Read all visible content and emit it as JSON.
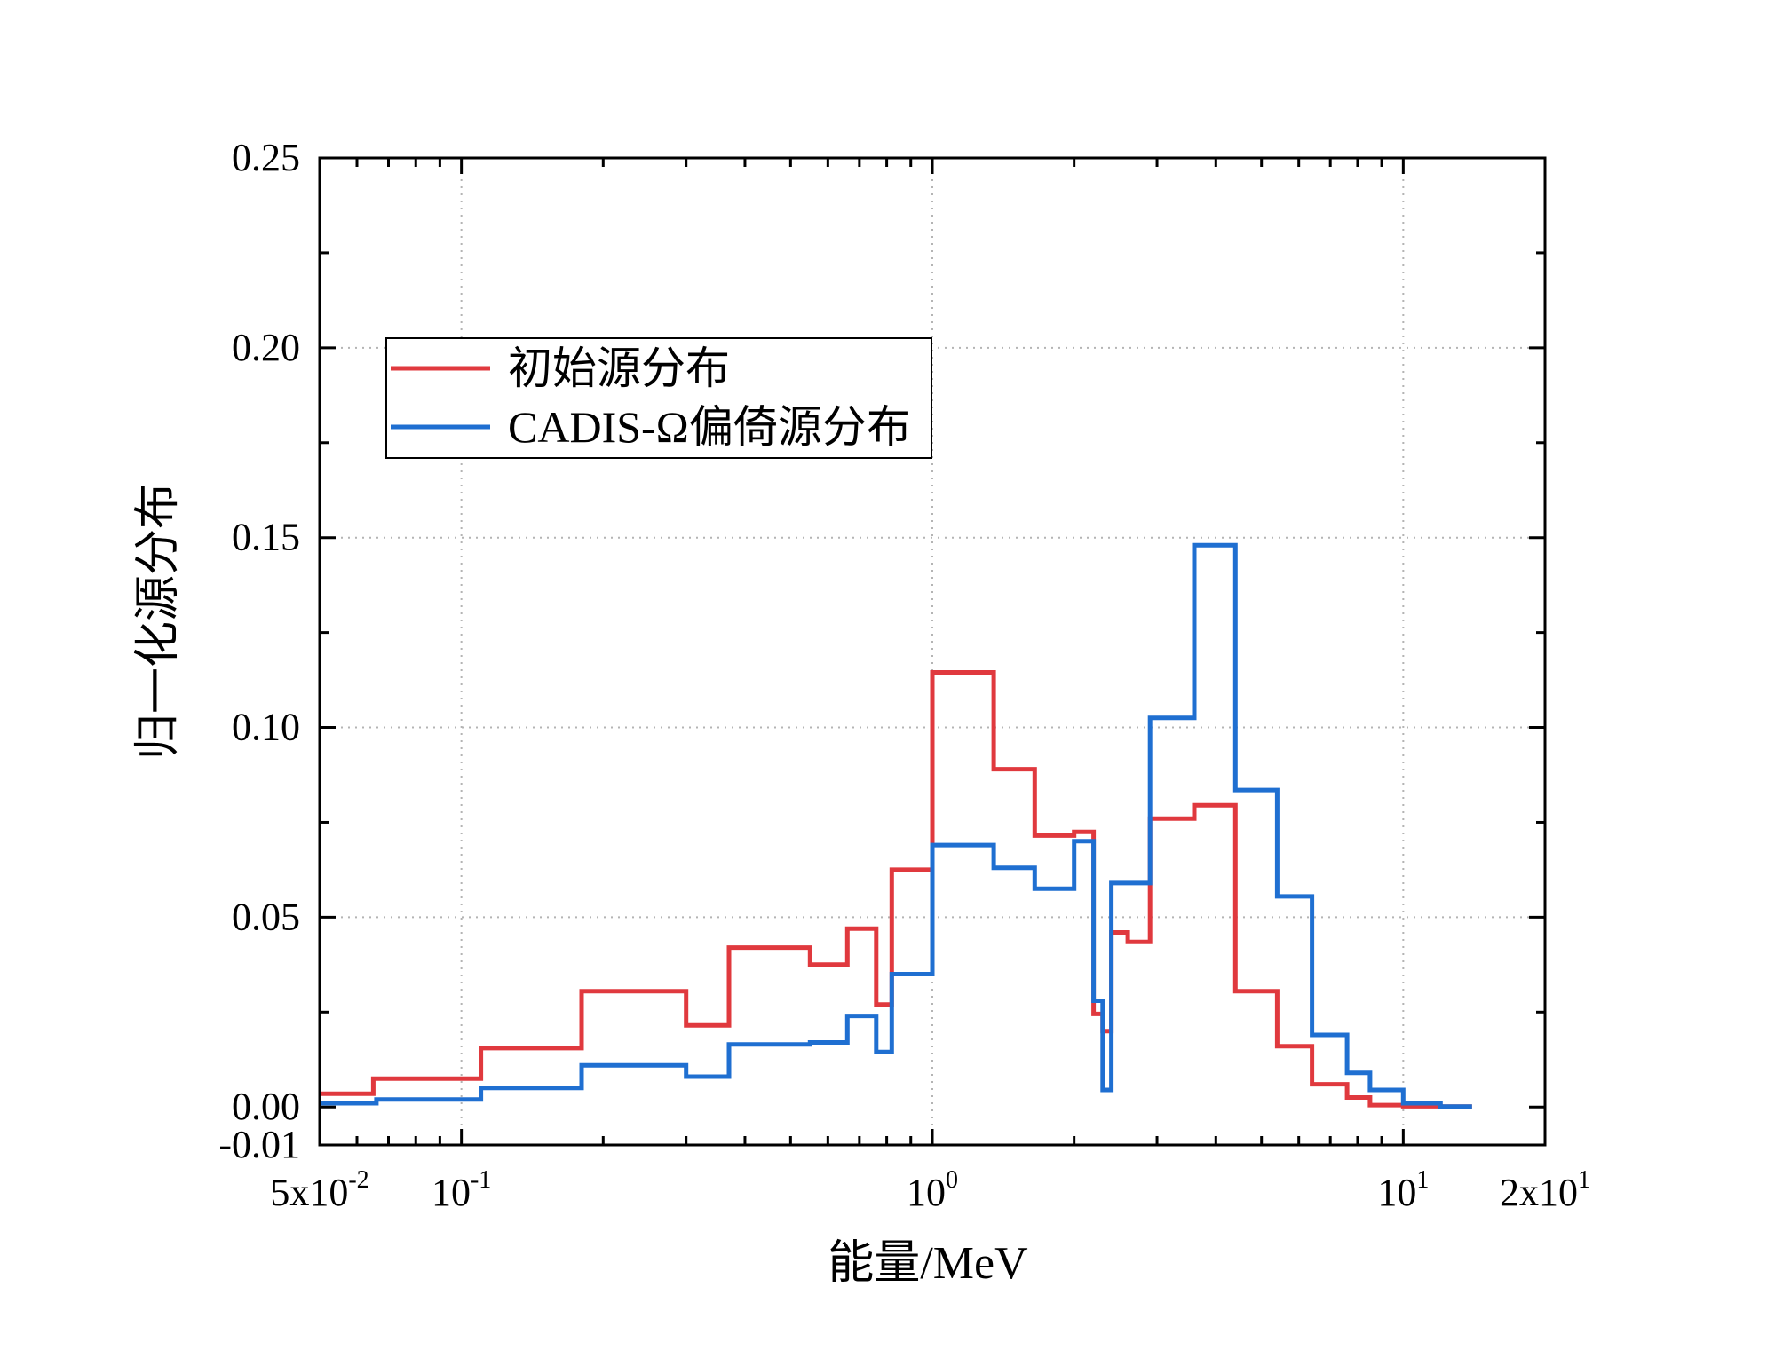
{
  "chart_data": {
    "type": "line",
    "step": true,
    "xlabel": "能量/MeV",
    "ylabel": "归一化源分布",
    "xscale": "log",
    "xlim": [
      0.05,
      20
    ],
    "ylim": [
      -0.01,
      0.25
    ],
    "grid": true,
    "legend_position": "top-left",
    "yticks": [
      {
        "value": -0.01,
        "label": "-0.01"
      },
      {
        "value": 0.0,
        "label": "0.00"
      },
      {
        "value": 0.05,
        "label": "0.05"
      },
      {
        "value": 0.1,
        "label": "0.10"
      },
      {
        "value": 0.15,
        "label": "0.15"
      },
      {
        "value": 0.2,
        "label": "0.20"
      },
      {
        "value": 0.25,
        "label": "0.25"
      }
    ],
    "xticks": [
      {
        "value": 0.05,
        "base": "5x10",
        "exp": "-2"
      },
      {
        "value": 0.1,
        "base": "10",
        "exp": "-1"
      },
      {
        "value": 1,
        "base": "10",
        "exp": "0"
      },
      {
        "value": 10,
        "base": "10",
        "exp": "1"
      },
      {
        "value": 20,
        "base": "2x10",
        "exp": "1"
      }
    ],
    "series": [
      {
        "name": "初始源分布",
        "color": "#e0393e",
        "edges": [
          0.05,
          0.065,
          0.11,
          0.18,
          0.3,
          0.37,
          0.55,
          0.66,
          0.76,
          0.82,
          1.0,
          1.35,
          1.65,
          2.0,
          2.2,
          2.3,
          2.4,
          2.6,
          2.9,
          3.6,
          4.4,
          5.4,
          6.4,
          7.6,
          8.5,
          10.0,
          12.0,
          14.0
        ],
        "values": [
          0.0035,
          0.0075,
          0.0155,
          0.0305,
          0.0215,
          0.042,
          0.0375,
          0.047,
          0.027,
          0.0625,
          0.1145,
          0.089,
          0.0715,
          0.0725,
          0.0245,
          0.02,
          0.046,
          0.0435,
          0.076,
          0.0795,
          0.0305,
          0.016,
          0.006,
          0.0025,
          0.0005,
          0.0002,
          0.0001
        ]
      },
      {
        "name": "CADIS-Ω偏倚源分布",
        "color": "#1f6fd1",
        "edges": [
          0.05,
          0.066,
          0.11,
          0.18,
          0.3,
          0.37,
          0.55,
          0.66,
          0.76,
          0.82,
          1.0,
          1.35,
          1.65,
          2.0,
          2.2,
          2.3,
          2.4,
          2.9,
          3.6,
          4.4,
          5.4,
          6.4,
          7.6,
          8.5,
          10.0,
          12.0,
          14.0
        ],
        "values": [
          0.001,
          0.002,
          0.005,
          0.011,
          0.008,
          0.0165,
          0.017,
          0.024,
          0.0145,
          0.035,
          0.069,
          0.063,
          0.0575,
          0.07,
          0.028,
          0.0045,
          0.059,
          0.1025,
          0.148,
          0.0835,
          0.0555,
          0.019,
          0.009,
          0.0045,
          0.001,
          0.0001
        ]
      }
    ]
  }
}
